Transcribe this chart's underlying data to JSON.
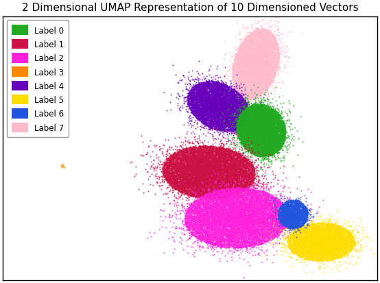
{
  "title": "2 Dimensional UMAP Representation of 10 Dimensioned Vectors",
  "labels": [
    "Label 0",
    "Label 1",
    "Label 2",
    "Label 3",
    "Label 4",
    "Label 5",
    "Label 6",
    "Label 7"
  ],
  "colors": [
    "#22aa22",
    "#cc1144",
    "#ff22dd",
    "#ff8800",
    "#6600bb",
    "#ffdd00",
    "#2255dd",
    "#ffbbcc"
  ],
  "figsize": [
    5.54,
    4.14
  ],
  "dpi": 100,
  "title_fontsize": 11,
  "marker_size": 2,
  "alpha": 0.8,
  "seed": 42
}
